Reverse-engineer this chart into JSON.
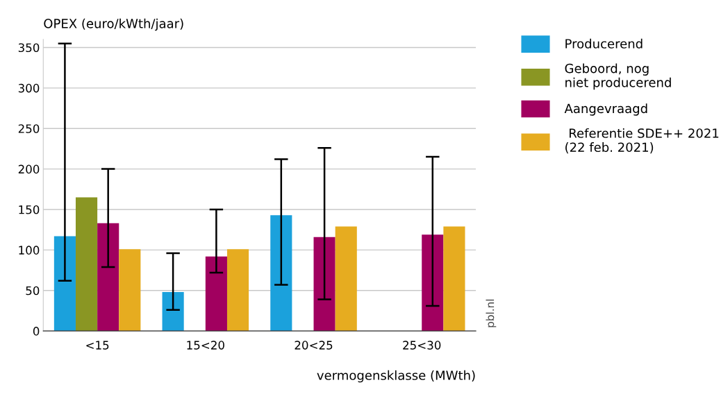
{
  "chart_data": {
    "type": "bar",
    "ylabel": "OPEX (euro/kWth/jaar)",
    "xlabel": "vermogensklasse (MWth)",
    "categories": [
      "<15",
      "15<20",
      "20<25",
      "25<30"
    ],
    "series": [
      {
        "name": "Producerend",
        "color": "#1ba1dc",
        "values": [
          117,
          48,
          143,
          null
        ],
        "errors": [
          [
            62,
            355
          ],
          [
            26,
            96
          ],
          [
            57,
            212
          ],
          null
        ]
      },
      {
        "name": "Geboord, nog\nniet producerend",
        "color": "#8a9623",
        "values": [
          165,
          null,
          null,
          null
        ]
      },
      {
        "name": "Aangevraagd",
        "color": "#a1005f",
        "values": [
          133,
          92,
          116,
          119
        ],
        "errors": [
          [
            79,
            200
          ],
          [
            72,
            150
          ],
          [
            39,
            226
          ],
          [
            31,
            215
          ]
        ]
      },
      {
        "name": " Referentie SDE++ 2021\n(22 feb. 2021)",
        "color": "#e6ac20",
        "values": [
          101,
          101,
          129,
          129
        ]
      }
    ],
    "ylim": [
      0,
      360
    ],
    "yticks": [
      0,
      50,
      100,
      150,
      200,
      250,
      300,
      350
    ],
    "grid": "y",
    "legend": "right",
    "annotations": [
      "pbl.nl"
    ]
  }
}
